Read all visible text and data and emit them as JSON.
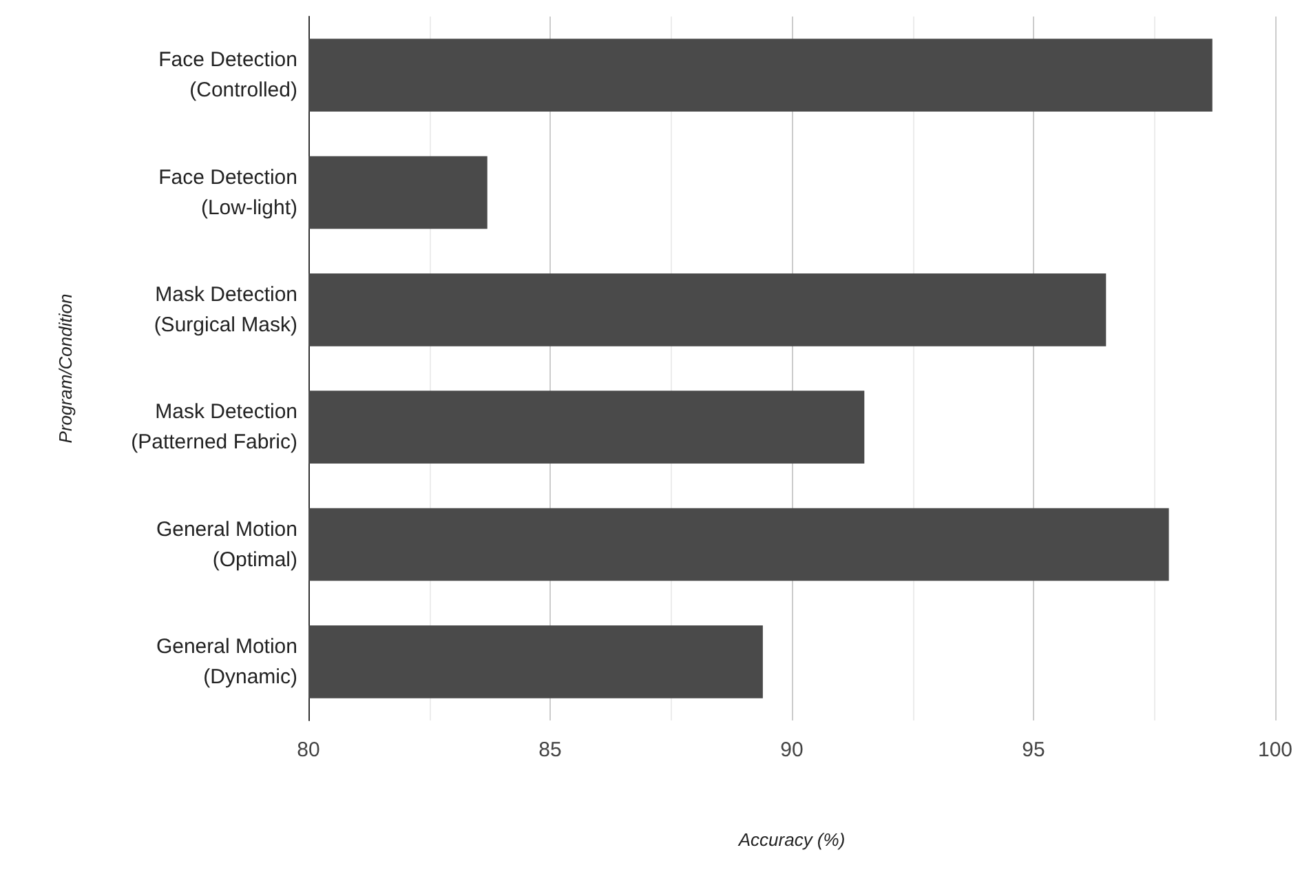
{
  "chart_data": {
    "type": "bar",
    "orientation": "horizontal",
    "xlabel": "Accuracy (%)",
    "ylabel": "Program/Condition",
    "categories": [
      "Face Detection\n(Controlled)",
      "Face Detection\n(Low-light)",
      "Mask Detection\n(Surgical Mask)",
      "Mask Detection\n(Patterned Fabric)",
      "General Motion\n(Optimal)",
      "General Motion\n(Dynamic)"
    ],
    "values": [
      98.7,
      83.7,
      96.5,
      91.5,
      97.8,
      89.4
    ],
    "color": "#4a4a4a",
    "xlim": [
      80,
      100
    ],
    "xticks": [
      80,
      {
        "value": 82.5,
        "label": null
      },
      85,
      {
        "value": 87.5,
        "label": null
      },
      90,
      {
        "value": 92.5,
        "label": null
      },
      95,
      {
        "value": 97.5,
        "label": null
      },
      100
    ],
    "grid": "x"
  }
}
